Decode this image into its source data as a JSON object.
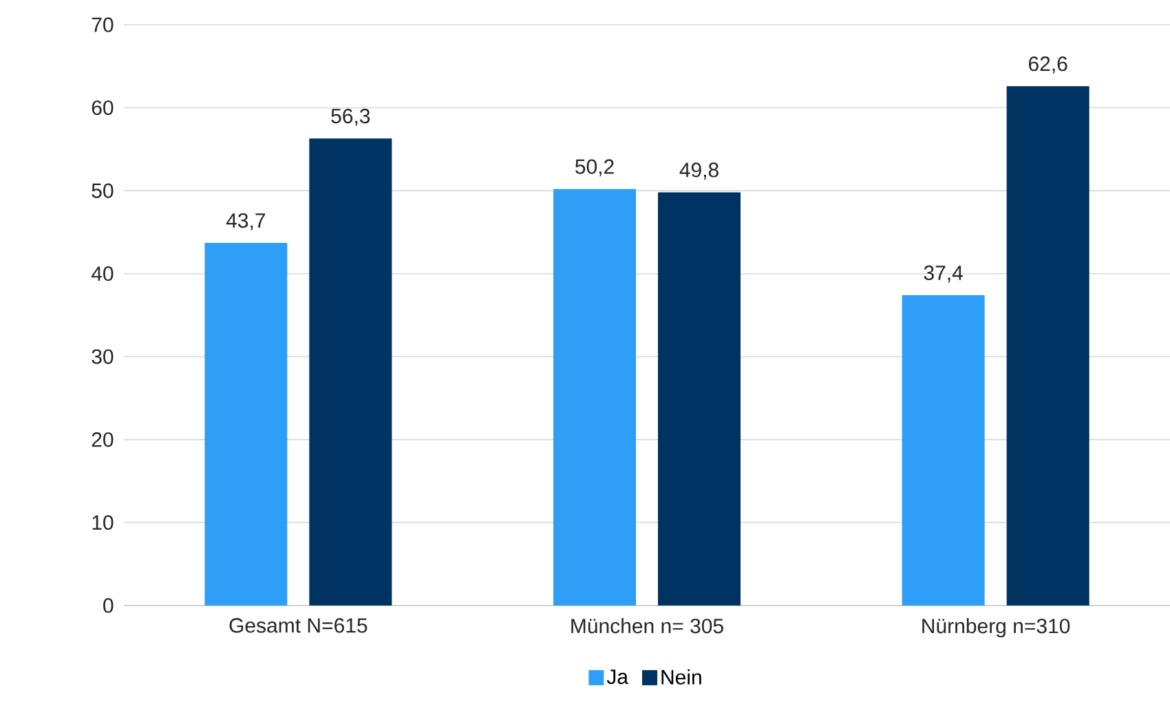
{
  "chart_data": {
    "type": "bar",
    "categories": [
      "Gesamt N=615",
      "München n= 305",
      "Nürnberg n=310"
    ],
    "series": [
      {
        "name": "Ja",
        "color": "#2e9ef7",
        "values": [
          43.7,
          50.2,
          37.4
        ],
        "value_labels": [
          "43,7",
          "50,2",
          "37,4"
        ]
      },
      {
        "name": "Nein",
        "color": "#003262",
        "values": [
          56.3,
          49.8,
          62.6
        ],
        "value_labels": [
          "56,3",
          "49,8",
          "62,6"
        ]
      }
    ],
    "ylim": [
      0,
      70
    ],
    "yticks": [
      0,
      10,
      20,
      30,
      40,
      50,
      60,
      70
    ],
    "grid": "y",
    "legend": "bottom"
  }
}
